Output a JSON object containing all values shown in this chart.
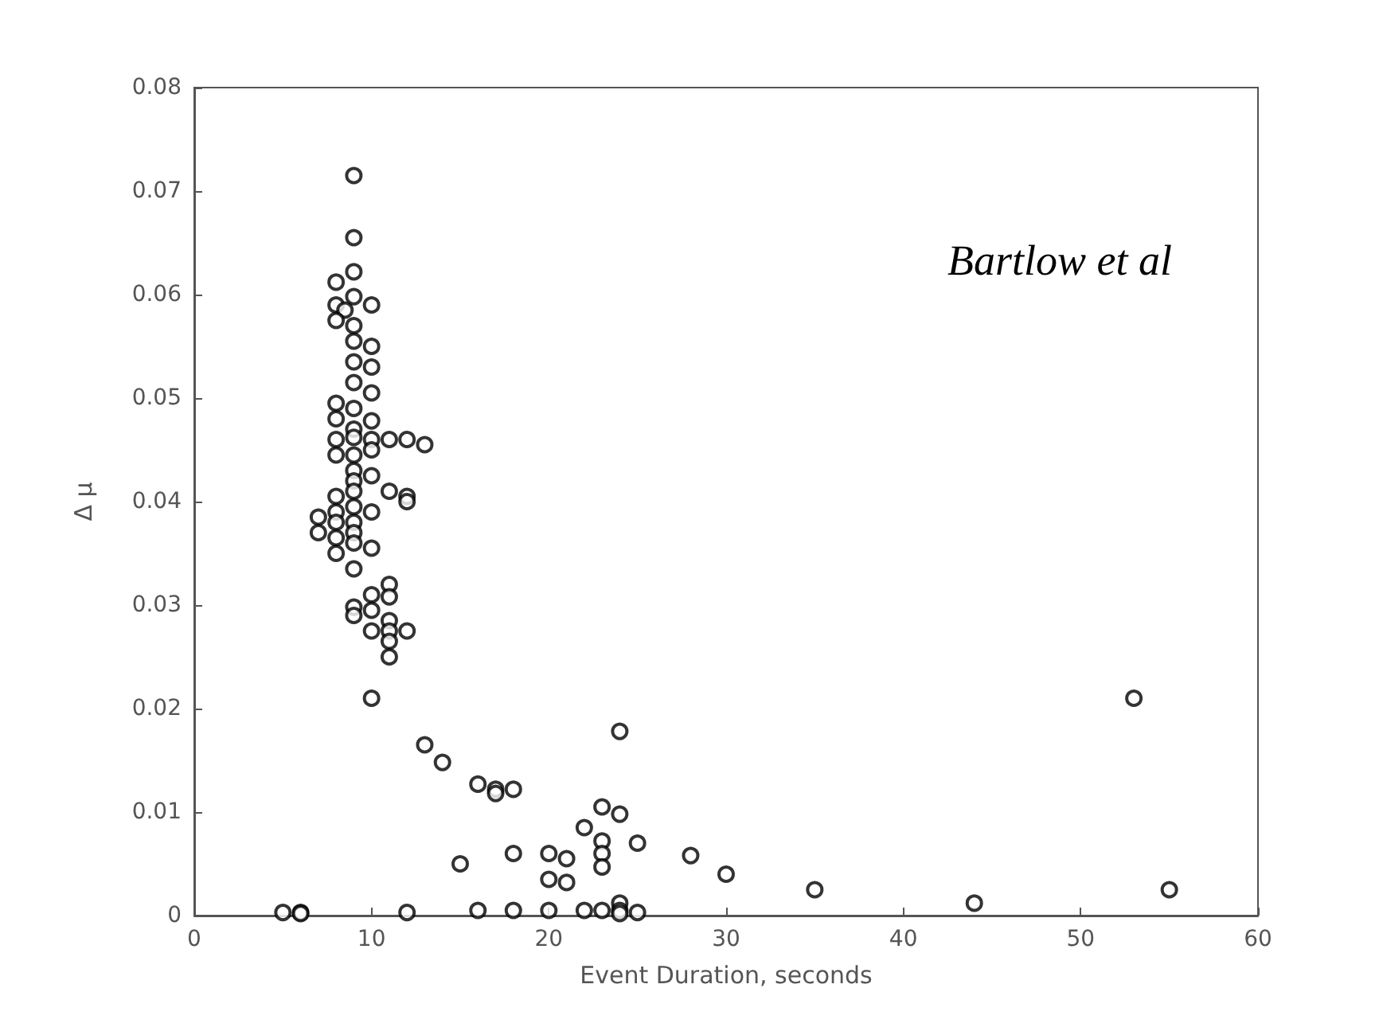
{
  "chart_data": {
    "type": "scatter",
    "xlabel": "Event Duration, seconds",
    "ylabel": "Δ μ",
    "annotations": [
      "Bartlow et al"
    ],
    "xlim": [
      0,
      60
    ],
    "xticks": [
      0,
      10,
      20,
      30,
      40,
      50,
      60
    ],
    "ylim": [
      0,
      0.08
    ],
    "yticks": [
      0,
      0.01,
      0.02,
      0.03,
      0.04,
      0.05,
      0.06,
      0.07,
      0.08
    ],
    "grid": false,
    "marker": "circle",
    "series": [
      {
        "color": "#000000",
        "x": [
          5,
          6,
          6,
          12,
          13,
          14,
          15,
          16,
          16,
          17,
          17,
          18,
          18,
          18,
          20,
          20,
          20,
          21,
          21,
          22,
          22,
          23,
          23,
          23,
          23,
          23,
          24,
          24,
          24,
          24,
          24,
          25,
          25,
          28,
          30,
          35,
          44,
          53,
          55,
          9,
          9,
          9,
          8,
          9,
          8,
          8.5,
          10,
          8,
          9,
          9,
          10,
          9,
          10,
          9,
          10,
          8,
          9,
          8,
          9,
          10,
          8,
          9,
          10,
          11,
          12,
          13,
          8,
          9,
          10,
          9,
          9,
          10,
          9,
          8,
          11,
          12,
          12,
          8,
          9,
          10,
          7,
          7,
          8,
          8,
          9,
          9,
          8,
          9,
          10,
          9,
          11,
          10,
          11,
          9,
          10,
          9,
          11,
          10,
          11,
          12,
          11,
          11,
          10
        ],
        "values": [
          0.0003,
          0.0003,
          0.0002,
          0.0003,
          0.0165,
          0.0148,
          0.005,
          0.0127,
          0.0005,
          0.0122,
          0.0118,
          0.0122,
          0.006,
          0.0005,
          0.006,
          0.0035,
          0.0005,
          0.0055,
          0.0032,
          0.0085,
          0.0005,
          0.0105,
          0.0072,
          0.006,
          0.0047,
          0.0005,
          0.0178,
          0.0098,
          0.0012,
          0.0005,
          0.0002,
          0.007,
          0.0003,
          0.0058,
          0.004,
          0.0025,
          0.0012,
          0.021,
          0.0025,
          0.0715,
          0.0655,
          0.0622,
          0.0612,
          0.0598,
          0.059,
          0.0585,
          0.059,
          0.0575,
          0.057,
          0.0555,
          0.055,
          0.0535,
          0.053,
          0.0515,
          0.0505,
          0.0495,
          0.049,
          0.048,
          0.047,
          0.0478,
          0.046,
          0.0462,
          0.046,
          0.046,
          0.046,
          0.0455,
          0.0445,
          0.0445,
          0.045,
          0.043,
          0.042,
          0.0425,
          0.041,
          0.0405,
          0.041,
          0.0405,
          0.04,
          0.039,
          0.0395,
          0.039,
          0.0385,
          0.037,
          0.038,
          0.0365,
          0.038,
          0.037,
          0.035,
          0.036,
          0.0355,
          0.0335,
          0.032,
          0.031,
          0.0308,
          0.0298,
          0.0295,
          0.029,
          0.0285,
          0.0275,
          0.0275,
          0.0275,
          0.0265,
          0.025,
          0.021
        ]
      }
    ]
  }
}
